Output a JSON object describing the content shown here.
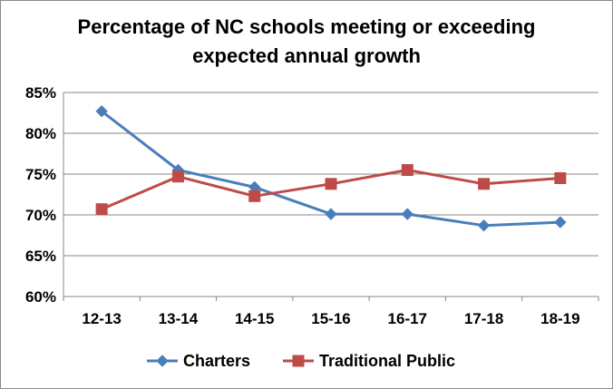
{
  "chart_data": {
    "type": "line",
    "title_lines": [
      "Percentage of NC schools meeting or exceeding",
      "expected annual growth"
    ],
    "categories": [
      "12-13",
      "13-14",
      "14-15",
      "15-16",
      "16-17",
      "17-18",
      "18-19"
    ],
    "y_ticks": [
      "60%",
      "65%",
      "70%",
      "75%",
      "80%",
      "85%"
    ],
    "ylim": [
      60,
      85
    ],
    "ystep": 5,
    "grid": true,
    "legend_position": "bottom",
    "series": [
      {
        "name": "Charters",
        "color": "#4a7ebb",
        "marker": "diamond",
        "values": [
          82.7,
          75.5,
          73.4,
          70.1,
          70.1,
          68.7,
          69.1
        ]
      },
      {
        "name": "Traditional Public",
        "color": "#be4b48",
        "marker": "square",
        "values": [
          70.7,
          74.7,
          72.3,
          73.8,
          75.5,
          73.8,
          74.5
        ]
      }
    ]
  }
}
